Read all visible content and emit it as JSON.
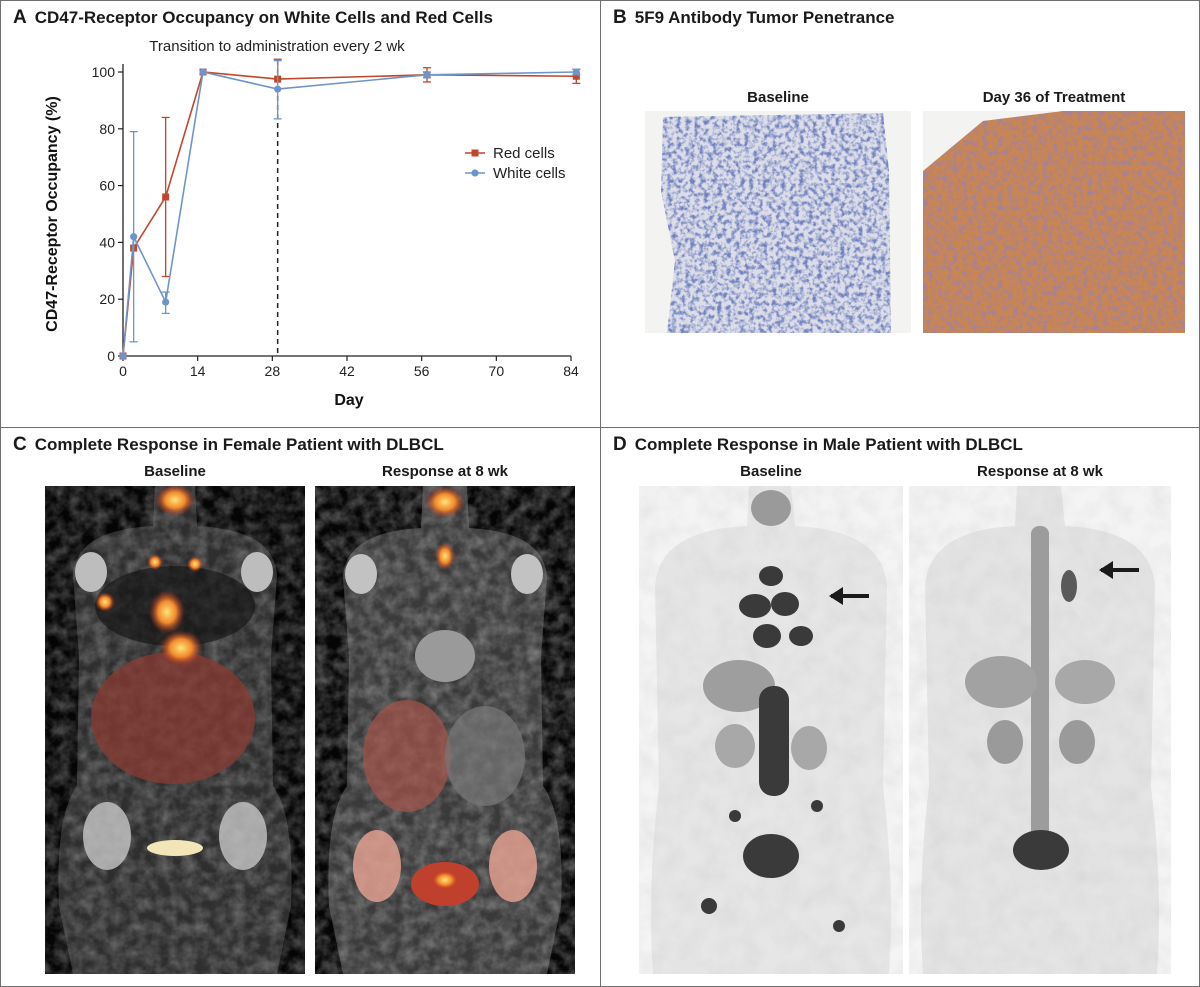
{
  "panel_a": {
    "letter": "A",
    "title": "CD47-Receptor Occupancy on White Cells and Red Cells",
    "annotation": "Transition to administration every 2 wk",
    "ylabel": "CD47-Receptor Occupancy (%)",
    "xlabel": "Day",
    "colors": {
      "red": "#c0462c",
      "white": "#6f95c8"
    }
  },
  "chart_data": {
    "type": "line",
    "xlabel": "Day",
    "ylabel": "CD47-Receptor Occupancy (%)",
    "xlim": [
      0,
      84
    ],
    "ylim": [
      0,
      100
    ],
    "xticks": [
      0,
      14,
      28,
      42,
      56,
      70,
      84
    ],
    "yticks": [
      0,
      20,
      40,
      60,
      80,
      100
    ],
    "legend_position": "right",
    "reference_line_x": 29,
    "series": [
      {
        "name": "Red cells",
        "color": "#c0462c",
        "marker": "square",
        "x": [
          0,
          2,
          8,
          15,
          29,
          57,
          85
        ],
        "y": [
          0,
          38,
          56,
          100,
          97.5,
          99,
          98.5
        ],
        "err_low": [
          0,
          38,
          28,
          100,
          97.5,
          96.5,
          96
        ],
        "err_high": [
          0,
          38,
          84,
          100,
          104.5,
          101.5,
          101
        ]
      },
      {
        "name": "White cells",
        "color": "#6f95c8",
        "marker": "circle",
        "x": [
          0,
          2,
          8,
          15,
          29,
          57,
          85
        ],
        "y": [
          0,
          42,
          19,
          100,
          94,
          99,
          100
        ],
        "err_low": [
          0,
          5,
          15,
          100,
          83.5,
          98,
          99
        ],
        "err_high": [
          0,
          79,
          22.5,
          100,
          104,
          100,
          101
        ]
      }
    ]
  },
  "panel_b": {
    "letter": "B",
    "title": "5F9 Antibody Tumor Penetrance",
    "left_label": "Baseline",
    "right_label": "Day 36 of Treatment"
  },
  "panel_c": {
    "letter": "C",
    "title": "Complete Response in Female Patient with DLBCL",
    "left_label": "Baseline",
    "right_label": "Response at 8 wk"
  },
  "panel_d": {
    "letter": "D",
    "title": "Complete Response in Male Patient with DLBCL",
    "left_label": "Baseline",
    "right_label": "Response at 8 wk"
  }
}
